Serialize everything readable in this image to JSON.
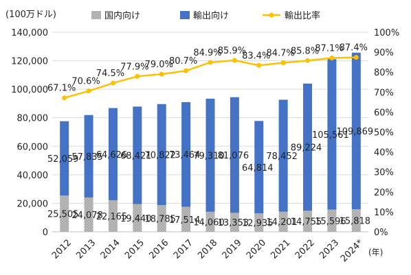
{
  "chart_data": {
    "type": "bar",
    "y_left_label": "(100万ドル)",
    "x_unit_label": "(年)",
    "ylim_left": [
      0,
      140000
    ],
    "yticks_left": [
      "0",
      "20,000",
      "40,000",
      "60,000",
      "80,000",
      "100,000",
      "120,000",
      "140,000"
    ],
    "ylim_right": [
      0,
      100
    ],
    "yticks_right": [
      "0%",
      "10%",
      "20%",
      "30%",
      "40%",
      "50%",
      "60%",
      "70%",
      "80%",
      "90%",
      "100%"
    ],
    "categories": [
      "2012",
      "2013",
      "2014",
      "2015",
      "2016",
      "2017",
      "2018",
      "2019",
      "2020",
      "2021",
      "2022",
      "2023",
      "2024*"
    ],
    "series": [
      {
        "name": "国内向け",
        "values": [
          25505,
          24078,
          22165,
          19440,
          18785,
          17514,
          14060,
          13353,
          12935,
          14201,
          14755,
          15596,
          15818
        ],
        "labels": [
          "25,505",
          "24,078",
          "22,165",
          "19,440",
          "18,785",
          "17,514",
          "14,060",
          "13,353",
          "12,935",
          "14,201",
          "14,755",
          "15,596",
          "15,818"
        ]
      },
      {
        "name": "輸出向け",
        "values": [
          52059,
          57835,
          64626,
          68421,
          70822,
          73464,
          79310,
          81076,
          64814,
          78452,
          89224,
          105561,
          109869
        ],
        "labels": [
          "52,059",
          "57,835",
          "64,626",
          "68,421",
          "70,822",
          "73,464",
          "79,310",
          "81,076",
          "64,814",
          "78,452",
          "89,224",
          "105,561",
          "109,869"
        ]
      },
      {
        "name": "輸出比率",
        "values": [
          67.1,
          70.6,
          74.5,
          77.9,
          79.0,
          80.7,
          84.9,
          85.9,
          83.4,
          84.7,
          85.8,
          87.1,
          87.4
        ],
        "labels": [
          "67.1%",
          "70.6%",
          "74.5%",
          "77.9%",
          "79.0%",
          "80.7%",
          "84.9%",
          "85.9%",
          "83.4%",
          "84.7%",
          "85.8%",
          "87.1%",
          "87.4%"
        ]
      }
    ],
    "colors": {
      "domestic": "#a6a6a6",
      "export": "#4472c4",
      "ratio": "#ffc000"
    },
    "grid": true,
    "legend": "top"
  }
}
